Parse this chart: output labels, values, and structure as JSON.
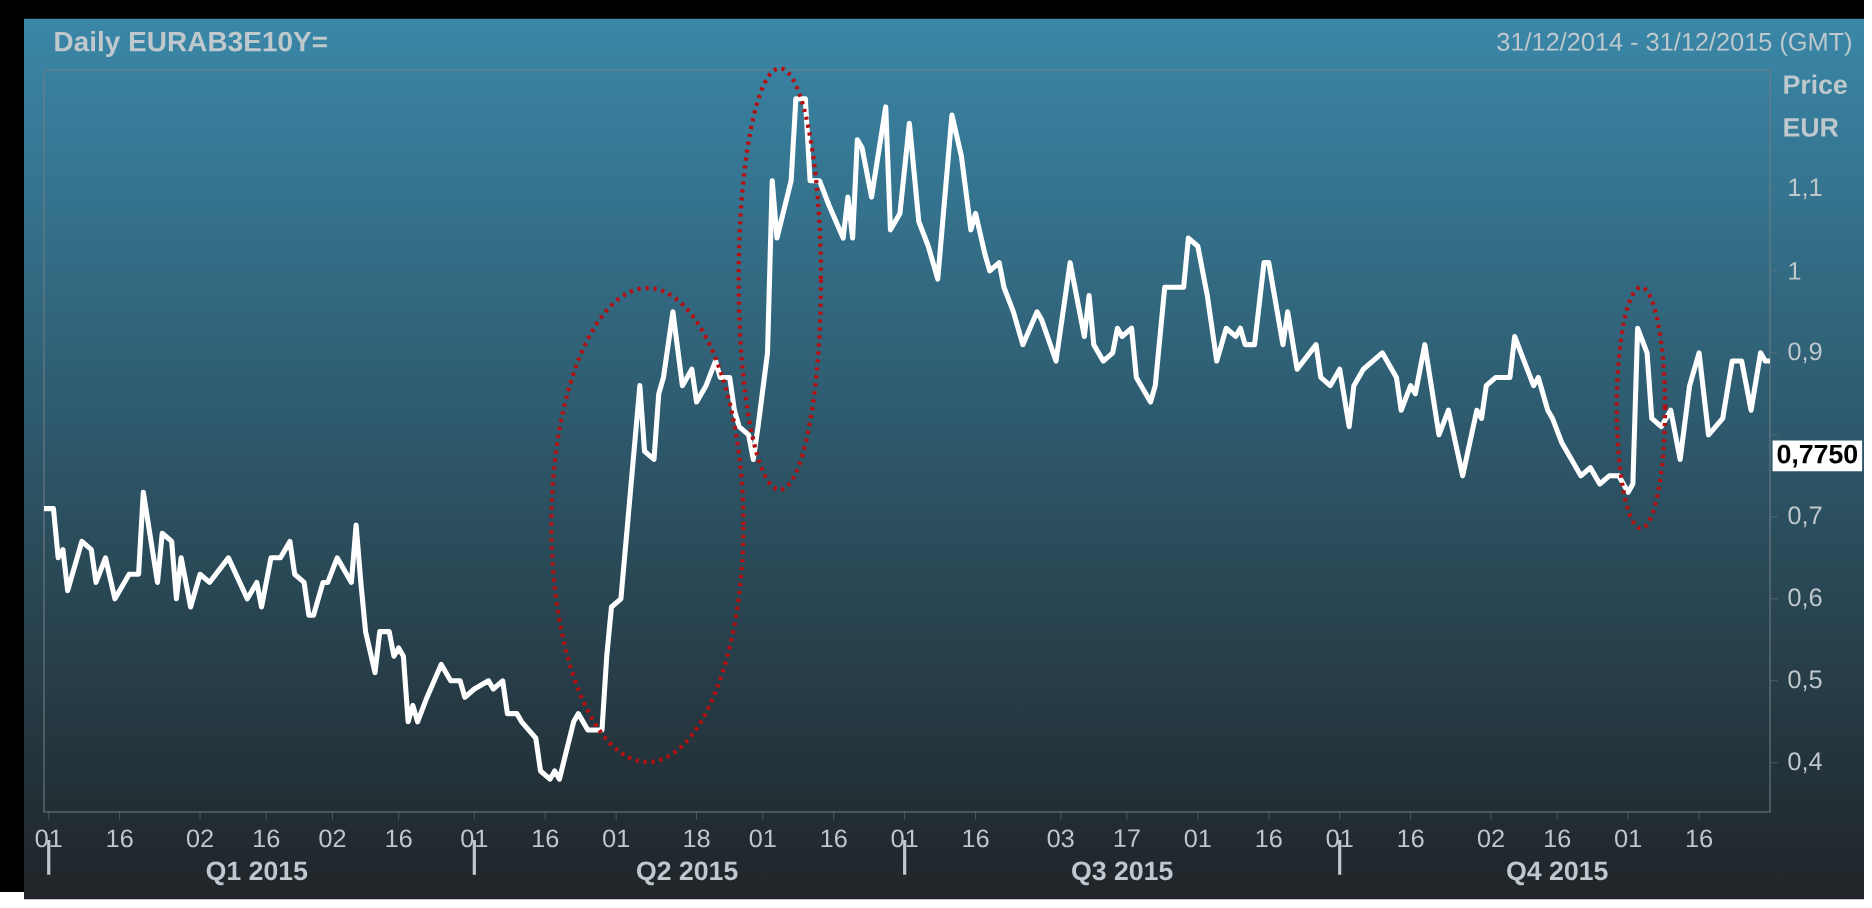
{
  "chart_data": {
    "type": "line",
    "title": "Daily EURAB3E10Y=",
    "subtitle": "31/12/2014 - 31/12/2015 (GMT)",
    "ylabel": "Price EUR",
    "x": [
      "2014-12-31",
      "2015-01-02",
      "2015-01-03",
      "2015-01-04",
      "2015-01-05",
      "2015-01-08",
      "2015-01-10",
      "2015-01-11",
      "2015-01-13",
      "2015-01-15",
      "2015-01-18",
      "2015-01-20",
      "2015-01-21",
      "2015-01-24",
      "2015-01-25",
      "2015-01-27",
      "2015-01-28",
      "2015-01-29",
      "2015-01-31",
      "2015-02-02",
      "2015-02-04",
      "2015-02-08",
      "2015-02-12",
      "2015-02-14",
      "2015-02-15",
      "2015-02-17",
      "2015-02-19",
      "2015-02-21",
      "2015-02-22",
      "2015-02-24",
      "2015-02-25",
      "2015-02-26",
      "2015-02-28",
      "2015-03-01",
      "2015-03-03",
      "2015-03-06",
      "2015-03-07",
      "2015-03-08",
      "2015-03-09",
      "2015-03-11",
      "2015-03-12",
      "2015-03-14",
      "2015-03-15",
      "2015-03-16",
      "2015-03-17",
      "2015-03-18",
      "2015-03-19",
      "2015-03-20",
      "2015-03-22",
      "2015-03-25",
      "2015-03-27",
      "2015-03-29",
      "2015-03-30",
      "2015-04-01",
      "2015-04-04",
      "2015-04-05",
      "2015-04-07",
      "2015-04-08",
      "2015-04-10",
      "2015-04-11",
      "2015-04-14",
      "2015-04-15",
      "2015-04-17",
      "2015-04-18",
      "2015-04-19",
      "2015-04-22",
      "2015-04-23",
      "2015-04-25",
      "2015-04-27",
      "2015-04-28",
      "2015-04-29",
      "2015-04-30",
      "2015-05-02",
      "2015-05-04",
      "2015-05-06",
      "2015-05-07",
      "2015-05-09",
      "2015-05-10",
      "2015-05-11",
      "2015-05-13",
      "2015-05-15",
      "2015-05-17",
      "2015-05-18",
      "2015-05-20",
      "2015-05-22",
      "2015-05-23",
      "2015-05-25",
      "2015-05-26",
      "2015-05-27",
      "2015-05-29",
      "2015-05-30",
      "2015-05-31",
      "2015-06-02",
      "2015-06-03",
      "2015-06-04",
      "2015-06-07",
      "2015-06-08",
      "2015-06-10",
      "2015-06-11",
      "2015-06-13",
      "2015-06-15",
      "2015-06-18",
      "2015-06-19",
      "2015-06-20",
      "2015-06-21",
      "2015-06-22",
      "2015-06-24",
      "2015-06-27",
      "2015-06-28",
      "2015-06-30",
      "2015-07-02",
      "2015-07-04",
      "2015-07-06",
      "2015-07-08",
      "2015-07-11",
      "2015-07-13",
      "2015-07-15",
      "2015-07-16",
      "2015-07-18",
      "2015-07-19",
      "2015-07-21",
      "2015-07-22",
      "2015-07-24",
      "2015-07-26",
      "2015-07-29",
      "2015-07-30",
      "2015-08-02",
      "2015-08-05",
      "2015-08-08",
      "2015-08-09",
      "2015-08-10",
      "2015-08-12",
      "2015-08-14",
      "2015-08-15",
      "2015-08-16",
      "2015-08-18",
      "2015-08-19",
      "2015-08-22",
      "2015-08-23",
      "2015-08-25",
      "2015-08-26",
      "2015-08-29",
      "2015-08-30",
      "2015-09-01",
      "2015-09-03",
      "2015-09-05",
      "2015-09-07",
      "2015-09-09",
      "2015-09-10",
      "2015-09-11",
      "2015-09-13",
      "2015-09-15",
      "2015-09-16",
      "2015-09-19",
      "2015-09-20",
      "2015-09-22",
      "2015-09-26",
      "2015-09-27",
      "2015-09-29",
      "2015-10-01",
      "2015-10-03",
      "2015-10-04",
      "2015-10-06",
      "2015-10-10",
      "2015-10-13",
      "2015-10-14",
      "2015-10-16",
      "2015-10-17",
      "2015-10-19",
      "2015-10-22",
      "2015-10-24",
      "2015-10-27",
      "2015-10-30",
      "2015-10-31",
      "2015-11-01",
      "2015-11-03",
      "2015-11-06",
      "2015-11-07",
      "2015-11-09",
      "2015-11-11",
      "2015-11-12",
      "2015-11-14",
      "2015-11-15",
      "2015-11-17",
      "2015-11-21",
      "2015-11-23",
      "2015-11-25",
      "2015-11-27",
      "2015-11-29",
      "2015-12-01",
      "2015-12-02",
      "2015-12-03",
      "2015-12-05",
      "2015-12-06",
      "2015-12-08",
      "2015-12-10",
      "2015-12-12",
      "2015-12-14",
      "2015-12-16",
      "2015-12-18",
      "2015-12-21",
      "2015-12-23",
      "2015-12-25",
      "2015-12-27",
      "2015-12-29",
      "2015-12-30",
      "2015-12-31"
    ],
    "series": [
      {
        "color": "#ffffff",
        "values": [
          0.71,
          0.71,
          0.65,
          0.66,
          0.61,
          0.67,
          0.66,
          0.62,
          0.65,
          0.6,
          0.63,
          0.63,
          0.73,
          0.62,
          0.68,
          0.67,
          0.6,
          0.65,
          0.59,
          0.63,
          0.62,
          0.65,
          0.6,
          0.62,
          0.59,
          0.65,
          0.65,
          0.67,
          0.63,
          0.62,
          0.58,
          0.58,
          0.62,
          0.62,
          0.65,
          0.62,
          0.69,
          0.62,
          0.56,
          0.51,
          0.56,
          0.56,
          0.53,
          0.54,
          0.53,
          0.45,
          0.47,
          0.45,
          0.48,
          0.52,
          0.5,
          0.5,
          0.48,
          0.49,
          0.5,
          0.49,
          0.5,
          0.46,
          0.46,
          0.45,
          0.43,
          0.39,
          0.38,
          0.39,
          0.38,
          0.45,
          0.46,
          0.44,
          0.44,
          0.44,
          0.53,
          0.59,
          0.6,
          0.73,
          0.86,
          0.78,
          0.77,
          0.85,
          0.87,
          0.95,
          0.86,
          0.88,
          0.84,
          0.86,
          0.89,
          0.87,
          0.87,
          0.83,
          0.81,
          0.8,
          0.77,
          0.81,
          0.9,
          1.11,
          1.04,
          1.11,
          1.21,
          1.21,
          1.11,
          1.11,
          1.08,
          1.04,
          1.09,
          1.04,
          1.16,
          1.15,
          1.09,
          1.2,
          1.05,
          1.07,
          1.18,
          1.06,
          1.03,
          0.99,
          1.19,
          1.14,
          1.05,
          1.07,
          1.02,
          1.0,
          1.01,
          0.98,
          0.95,
          0.91,
          0.95,
          0.94,
          0.89,
          1.01,
          0.92,
          0.97,
          0.91,
          0.89,
          0.9,
          0.93,
          0.92,
          0.93,
          0.87,
          0.84,
          0.86,
          0.98,
          0.98,
          0.98,
          1.04,
          1.03,
          0.97,
          0.89,
          0.93,
          0.92,
          0.93,
          0.91,
          0.91,
          1.01,
          1.01,
          0.91,
          0.95,
          0.88,
          0.91,
          0.87,
          0.86,
          0.88,
          0.81,
          0.86,
          0.88,
          0.9,
          0.87,
          0.83,
          0.86,
          0.85,
          0.91,
          0.8,
          0.83,
          0.75,
          0.83,
          0.82,
          0.86,
          0.87,
          0.87,
          0.92,
          0.89,
          0.86,
          0.87,
          0.83,
          0.82,
          0.79,
          0.75,
          0.76,
          0.74,
          0.75,
          0.75,
          0.73,
          0.74,
          0.93,
          0.9,
          0.82,
          0.81,
          0.83,
          0.77,
          0.86,
          0.9,
          0.8,
          0.82,
          0.89,
          0.89,
          0.83,
          0.9,
          0.89,
          0.89
        ]
      }
    ],
    "xlim": [
      "2014-12-31",
      "2015-12-31"
    ],
    "xticks": [
      {
        "value": "2015-01-01",
        "label": "01"
      },
      {
        "value": "2015-01-16",
        "label": "16"
      },
      {
        "value": "2015-02-02",
        "label": "02"
      },
      {
        "value": "2015-02-16",
        "label": "16"
      },
      {
        "value": "2015-03-02",
        "label": "02"
      },
      {
        "value": "2015-03-16",
        "label": "16"
      },
      {
        "value": "2015-04-01",
        "label": "01"
      },
      {
        "value": "2015-04-16",
        "label": "16"
      },
      {
        "value": "2015-05-01",
        "label": "01"
      },
      {
        "value": "2015-05-18",
        "label": "18"
      },
      {
        "value": "2015-06-01",
        "label": "01"
      },
      {
        "value": "2015-06-16",
        "label": "16"
      },
      {
        "value": "2015-07-01",
        "label": "01"
      },
      {
        "value": "2015-07-16",
        "label": "16"
      },
      {
        "value": "2015-08-03",
        "label": "03"
      },
      {
        "value": "2015-08-17",
        "label": "17"
      },
      {
        "value": "2015-09-01",
        "label": "01"
      },
      {
        "value": "2015-09-16",
        "label": "16"
      },
      {
        "value": "2015-10-01",
        "label": "01"
      },
      {
        "value": "2015-10-16",
        "label": "16"
      },
      {
        "value": "2015-11-02",
        "label": "02"
      },
      {
        "value": "2015-11-16",
        "label": "16"
      },
      {
        "value": "2015-12-01",
        "label": "01"
      },
      {
        "value": "2015-12-16",
        "label": "16"
      }
    ],
    "x2lim": [
      "2014-12-31",
      "2015-12-31"
    ],
    "x2ticks": [
      {
        "value": "2015-01-01",
        "label": null
      },
      {
        "value": "2015-02-14",
        "label": "Q1 2015"
      },
      {
        "value": "2015-04-01",
        "label": null
      },
      {
        "value": "2015-05-16",
        "label": "Q2 2015"
      },
      {
        "value": "2015-07-01",
        "label": null
      },
      {
        "value": "2015-08-16",
        "label": "Q3 2015"
      },
      {
        "value": "2015-10-01",
        "label": null
      },
      {
        "value": "2015-11-16",
        "label": "Q4 2015"
      }
    ],
    "ylim": [
      0.34,
      1.245
    ],
    "yticks": [
      {
        "value": 0.4,
        "label": "0,4"
      },
      {
        "value": 0.5,
        "label": "0,5"
      },
      {
        "value": 0.6,
        "label": "0,6"
      },
      {
        "value": 0.7,
        "label": "0,7"
      },
      {
        "value": 0.8,
        "label": null
      },
      {
        "value": 0.9,
        "label": "0,9"
      },
      {
        "value": 1,
        "label": "1"
      },
      {
        "value": 1.1,
        "label": "1,1"
      }
    ],
    "annotations": [
      "0,7750"
    ],
    "marker": "none",
    "line_style": "solid"
  }
}
